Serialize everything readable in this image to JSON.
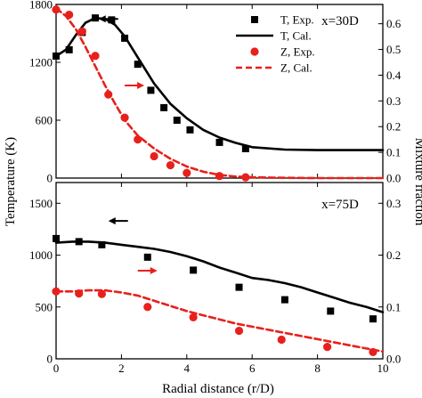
{
  "chart_data": [
    {
      "type": "line",
      "panel_label": "x=30D",
      "xlim": [
        0,
        10
      ],
      "ylim_left": [
        0,
        1800
      ],
      "ylim_right": [
        0,
        0.675
      ],
      "x_ticks": [
        0,
        2,
        4,
        6,
        8,
        10
      ],
      "y_left_ticks": [
        0,
        600,
        1200,
        1800
      ],
      "y_right_ticks": [
        0.0,
        0.1,
        0.2,
        0.3,
        0.4,
        0.5,
        0.6
      ],
      "grid": false,
      "legend_position": "top-right",
      "series": [
        {
          "name": "T, Exp.",
          "style": "square-markers",
          "axis": "left",
          "color": "#000000",
          "x": [
            0.0,
            0.4,
            0.8,
            1.2,
            1.7,
            2.1,
            2.5,
            2.9,
            3.3,
            3.7,
            4.1,
            5.0,
            5.8
          ],
          "y": [
            1265,
            1330,
            1510,
            1660,
            1640,
            1450,
            1180,
            910,
            730,
            600,
            500,
            370,
            305
          ]
        },
        {
          "name": "T, Cal.",
          "style": "solid-line",
          "axis": "left",
          "color": "#000000",
          "x": [
            0.0,
            0.3,
            0.6,
            0.9,
            1.2,
            1.5,
            1.8,
            2.1,
            2.5,
            3.0,
            3.5,
            4.0,
            4.5,
            5.0,
            5.5,
            6.0,
            7.0,
            8.0,
            9.0,
            10.0
          ],
          "y": [
            1265,
            1330,
            1480,
            1610,
            1660,
            1650,
            1590,
            1470,
            1250,
            980,
            770,
            620,
            500,
            420,
            365,
            320,
            295,
            290,
            290,
            290
          ]
        },
        {
          "name": "Z, Exp.",
          "style": "circle-markers",
          "axis": "right",
          "color": "#e8201c",
          "x": [
            0.0,
            0.4,
            0.8,
            1.2,
            1.6,
            2.1,
            2.5,
            3.0,
            3.5,
            4.0,
            5.0,
            5.8
          ],
          "y": [
            0.655,
            0.635,
            0.57,
            0.475,
            0.325,
            0.235,
            0.15,
            0.085,
            0.05,
            0.02,
            0.008,
            0.003
          ]
        },
        {
          "name": "Z, Cal.",
          "style": "dashed-line",
          "axis": "right",
          "color": "#e8201c",
          "x": [
            0.0,
            0.3,
            0.6,
            0.9,
            1.2,
            1.5,
            1.8,
            2.1,
            2.5,
            3.0,
            3.5,
            4.0,
            4.5,
            5.0,
            5.5,
            6.0,
            7.0,
            8.0,
            10.0
          ],
          "y": [
            0.66,
            0.63,
            0.58,
            0.51,
            0.435,
            0.36,
            0.29,
            0.225,
            0.165,
            0.115,
            0.075,
            0.045,
            0.025,
            0.012,
            0.006,
            0.003,
            0.001,
            0.0,
            0.0
          ]
        }
      ]
    },
    {
      "type": "line",
      "panel_label": "x=75D",
      "xlim": [
        0,
        10
      ],
      "ylim_left": [
        0,
        1700
      ],
      "ylim_right": [
        0,
        0.34
      ],
      "x_ticks": [
        0,
        2,
        4,
        6,
        8,
        10
      ],
      "y_left_ticks": [
        0,
        500,
        1000,
        1500
      ],
      "y_right_ticks": [
        0.0,
        0.1,
        0.2,
        0.3
      ],
      "grid": false,
      "series": [
        {
          "name": "T, Exp.",
          "style": "square-markers",
          "axis": "left",
          "color": "#000000",
          "x": [
            0.0,
            0.7,
            1.4,
            2.8,
            4.2,
            5.6,
            7.0,
            8.4,
            9.7
          ],
          "y": [
            1160,
            1130,
            1100,
            980,
            855,
            690,
            570,
            460,
            385
          ]
        },
        {
          "name": "T, Cal.",
          "style": "solid-line",
          "axis": "left",
          "color": "#000000",
          "x": [
            0.0,
            0.5,
            1.0,
            1.5,
            2.0,
            2.5,
            3.0,
            3.5,
            4.0,
            4.5,
            5.0,
            5.5,
            6.0,
            6.5,
            7.0,
            7.5,
            8.0,
            8.5,
            9.0,
            9.5,
            10.0
          ],
          "y": [
            1120,
            1130,
            1130,
            1120,
            1100,
            1080,
            1060,
            1030,
            990,
            940,
            880,
            830,
            780,
            760,
            730,
            690,
            640,
            590,
            540,
            500,
            450
          ]
        },
        {
          "name": "Z, Exp.",
          "style": "circle-markers",
          "axis": "right",
          "color": "#e8201c",
          "x": [
            0.0,
            0.7,
            1.4,
            2.8,
            4.2,
            5.6,
            6.9,
            8.3,
            9.7
          ],
          "y": [
            0.13,
            0.126,
            0.125,
            0.1,
            0.08,
            0.054,
            0.037,
            0.023,
            0.013
          ]
        },
        {
          "name": "Z, Cal.",
          "style": "dashed-line",
          "axis": "right",
          "color": "#e8201c",
          "x": [
            0.0,
            0.5,
            1.0,
            1.5,
            2.0,
            2.5,
            3.0,
            3.5,
            4.0,
            4.5,
            5.0,
            5.5,
            6.0,
            6.5,
            7.0,
            7.5,
            8.0,
            8.5,
            9.0,
            9.5,
            10.0
          ],
          "y": [
            0.13,
            0.13,
            0.132,
            0.132,
            0.128,
            0.122,
            0.112,
            0.102,
            0.092,
            0.084,
            0.076,
            0.068,
            0.062,
            0.056,
            0.05,
            0.044,
            0.038,
            0.032,
            0.026,
            0.02,
            0.014
          ]
        }
      ]
    }
  ],
  "axes": {
    "xlabel": "Radial distance (r/D)",
    "ylabel_left": "Temperature (K)",
    "ylabel_right": "Mixture fraction"
  },
  "legend": [
    {
      "label": "T, Exp.",
      "style": "square-markers",
      "color": "#000000"
    },
    {
      "label": "T, Cal.",
      "style": "solid-line",
      "color": "#000000"
    },
    {
      "label": "Z, Exp.",
      "style": "circle-markers",
      "color": "#e8201c"
    },
    {
      "label": "Z, Cal.",
      "style": "dashed-line",
      "color": "#e8201c"
    }
  ],
  "annotations": [
    {
      "panel": 0,
      "direction": "left",
      "x": 1.9,
      "y_axis": "left",
      "y": 1650,
      "color": "#000000"
    },
    {
      "panel": 0,
      "direction": "right",
      "x": 2.1,
      "y_axis": "right",
      "y": 0.36,
      "color": "#e8201c"
    },
    {
      "panel": 1,
      "direction": "left",
      "x": 2.2,
      "y_axis": "left",
      "y": 1330,
      "color": "#000000"
    },
    {
      "panel": 1,
      "direction": "right",
      "x": 2.5,
      "y_axis": "right",
      "y": 0.17,
      "color": "#e8201c"
    }
  ]
}
